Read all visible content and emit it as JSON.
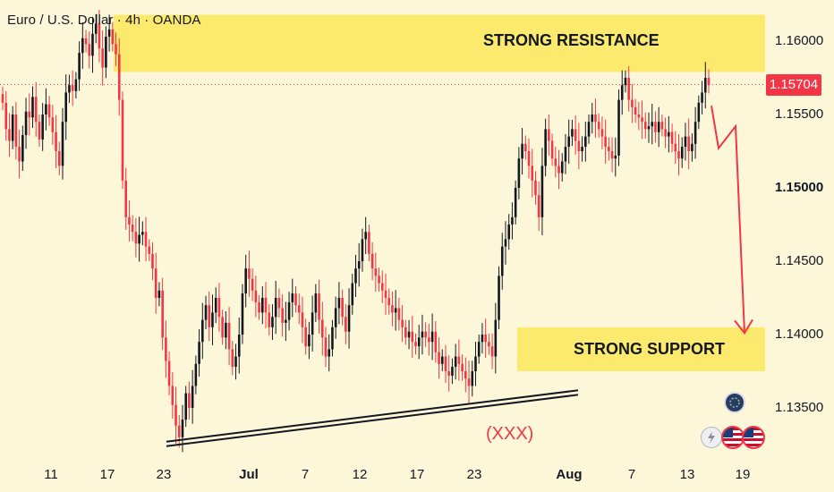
{
  "header": {
    "title": "Euro / U.S. Dollar · 4h · OANDA"
  },
  "annotations": {
    "resistance_label": "STRONG RESISTANCE",
    "support_label": "STRONG SUPPORT",
    "pattern_label": "(XXX)"
  },
  "price_badge": "1.15704",
  "colors": {
    "up": "#131722",
    "down": "#f23645",
    "zone": "#fcea6e",
    "background": "#fdf7d9",
    "arrow": "#f23645"
  },
  "event_icons": [
    "economic-calendar-icon",
    "flash-event-icon",
    "us-flag-event-icon",
    "us-flag-event-icon"
  ],
  "chart_data": {
    "type": "candlestick",
    "symbol": "Euro / U.S. Dollar",
    "timeframe": "4h",
    "source": "OANDA",
    "x_ticks": [
      "11",
      "17",
      "23",
      "Jul",
      "7",
      "12",
      "17",
      "23",
      "Aug",
      "7",
      "13",
      "19"
    ],
    "y_ticks": [
      "1.16000",
      "1.15500",
      "1.15000",
      "1.14500",
      "1.14000",
      "1.13500"
    ],
    "bold_y_ticks": [
      "1.15000"
    ],
    "current_price": 1.15704,
    "ylim": [
      1.1322,
      1.1622
    ],
    "resistance_zone": [
      1.1579,
      1.1618
    ],
    "support_zone": [
      1.1375,
      1.1405
    ],
    "trendline": {
      "from": [
        "Jun 24",
        1.1327
      ],
      "to": [
        "Jul 29",
        1.1362
      ]
    },
    "projection": [
      1.1556,
      1.1527,
      1.1542,
      1.1401
    ],
    "closes": [
      1.1558,
      1.154,
      1.1532,
      1.155,
      1.1528,
      1.1518,
      1.1536,
      1.1552,
      1.1548,
      1.1562,
      1.1545,
      1.1533,
      1.155,
      1.1557,
      1.1548,
      1.1538,
      1.1525,
      1.1515,
      1.1545,
      1.1565,
      1.157,
      1.1566,
      1.1574,
      1.1592,
      1.1602,
      1.1598,
      1.159,
      1.1605,
      1.1612,
      1.1595,
      1.1582,
      1.1603,
      1.1608,
      1.1598,
      1.1591,
      1.156,
      1.1505,
      1.148,
      1.1475,
      1.147,
      1.1462,
      1.1468,
      1.147,
      1.146,
      1.1455,
      1.1445,
      1.1425,
      1.143,
      1.1398,
      1.1382,
      1.1365,
      1.1352,
      1.1338,
      1.133,
      1.1342,
      1.136,
      1.135,
      1.1365,
      1.138,
      1.1395,
      1.141,
      1.142,
      1.1405,
      1.1415,
      1.1425,
      1.1412,
      1.1398,
      1.1408,
      1.139,
      1.1378,
      1.1385,
      1.14,
      1.1428,
      1.1445,
      1.1438,
      1.143,
      1.1422,
      1.1415,
      1.1425,
      1.1415,
      1.1405,
      1.1412,
      1.1425,
      1.1418,
      1.1408,
      1.141,
      1.1422,
      1.1428,
      1.142,
      1.1415,
      1.1405,
      1.1392,
      1.14,
      1.1415,
      1.1428,
      1.141,
      1.1398,
      1.1385,
      1.139,
      1.1405,
      1.1418,
      1.1425,
      1.1412,
      1.1402,
      1.142,
      1.1435,
      1.1445,
      1.145,
      1.1465,
      1.147,
      1.1455,
      1.1445,
      1.144,
      1.1435,
      1.143,
      1.1425,
      1.142,
      1.1415,
      1.1418,
      1.141,
      1.1405,
      1.1398,
      1.1402,
      1.1395,
      1.1392,
      1.1398,
      1.1402,
      1.1398,
      1.1395,
      1.1402,
      1.1388,
      1.138,
      1.1385,
      1.1375,
      1.1372,
      1.1378,
      1.1385,
      1.138,
      1.1375,
      1.137,
      1.1365,
      1.1375,
      1.1385,
      1.1395,
      1.14,
      1.1395,
      1.1392,
      1.1385,
      1.141,
      1.144,
      1.146,
      1.1465,
      1.1475,
      1.148,
      1.15,
      1.152,
      1.153,
      1.1525,
      1.1515,
      1.1505,
      1.1495,
      1.148,
      1.1515,
      1.154,
      1.1532,
      1.152,
      1.1515,
      1.151,
      1.1518,
      1.1528,
      1.1535,
      1.154,
      1.1532,
      1.1525,
      1.1528,
      1.1535,
      1.1545,
      1.155,
      1.1545,
      1.154,
      1.1535,
      1.1528,
      1.1525,
      1.152,
      1.1522,
      1.156,
      1.157,
      1.1575,
      1.156,
      1.1555,
      1.155,
      1.1548,
      1.1545,
      1.154,
      1.1542,
      1.1545,
      1.1538,
      1.1545,
      1.154,
      1.1535,
      1.1538,
      1.153,
      1.1525,
      1.152,
      1.1528,
      1.1535,
      1.1525,
      1.153,
      1.1545,
      1.1558,
      1.1565,
      1.1575,
      1.157
    ]
  }
}
